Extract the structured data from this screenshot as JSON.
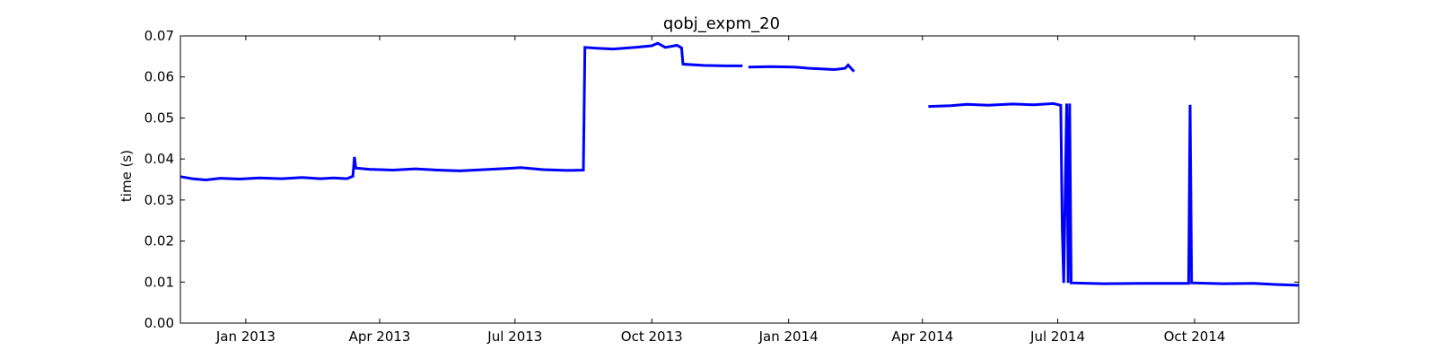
{
  "chart_data": {
    "type": "line",
    "title": "qobj_expm_20",
    "xlabel": "",
    "ylabel": "time (s)",
    "x_ticks": [
      "Jan 2013",
      "Apr 2013",
      "Jul 2013",
      "Oct 2013",
      "Jan 2014",
      "Apr 2014",
      "Jul 2014",
      "Oct 2014"
    ],
    "y_ticks": [
      "0.00",
      "0.01",
      "0.02",
      "0.03",
      "0.04",
      "0.05",
      "0.06",
      "0.07"
    ],
    "xlim": [
      "2012-11-18",
      "2014-12-10"
    ],
    "ylim": [
      0,
      0.07
    ],
    "grid": false,
    "legend": "none",
    "line_color": "#0000ff",
    "series": [
      {
        "segments": [
          [
            [
              "2012-11-18",
              0.0357
            ],
            [
              "2012-11-26",
              0.0352
            ],
            [
              "2012-12-05",
              0.0349
            ],
            [
              "2012-12-15",
              0.0353
            ],
            [
              "2012-12-28",
              0.0351
            ],
            [
              "2013-01-10",
              0.0354
            ],
            [
              "2013-01-25",
              0.0352
            ],
            [
              "2013-02-08",
              0.0355
            ],
            [
              "2013-02-20",
              0.0352
            ],
            [
              "2013-03-01",
              0.0354
            ],
            [
              "2013-03-10",
              0.0352
            ],
            [
              "2013-03-14",
              0.0358
            ],
            [
              "2013-03-15",
              0.0405
            ],
            [
              "2013-03-16",
              0.0378
            ],
            [
              "2013-03-25",
              0.0375
            ],
            [
              "2013-04-10",
              0.0373
            ],
            [
              "2013-04-25",
              0.0376
            ],
            [
              "2013-05-10",
              0.0373
            ],
            [
              "2013-05-25",
              0.0371
            ],
            [
              "2013-06-10",
              0.0374
            ],
            [
              "2013-06-25",
              0.0377
            ],
            [
              "2013-07-05",
              0.0379
            ],
            [
              "2013-07-20",
              0.0374
            ],
            [
              "2013-08-05",
              0.0372
            ],
            [
              "2013-08-16",
              0.0373
            ],
            [
              "2013-08-17",
              0.0672
            ],
            [
              "2013-08-25",
              0.067
            ],
            [
              "2013-09-05",
              0.0668
            ],
            [
              "2013-09-20",
              0.0672
            ],
            [
              "2013-10-01",
              0.0676
            ],
            [
              "2013-10-05",
              0.0682
            ],
            [
              "2013-10-10",
              0.0672
            ],
            [
              "2013-10-18",
              0.0677
            ],
            [
              "2013-10-21",
              0.0671
            ],
            [
              "2013-10-22",
              0.0631
            ],
            [
              "2013-11-05",
              0.0628
            ],
            [
              "2013-11-20",
              0.0627
            ],
            [
              "2013-12-01",
              0.0627
            ]
          ],
          [
            [
              "2013-12-05",
              0.0624
            ],
            [
              "2013-12-20",
              0.0625
            ],
            [
              "2014-01-05",
              0.0624
            ],
            [
              "2014-01-15",
              0.0621
            ],
            [
              "2014-02-01",
              0.0618
            ],
            [
              "2014-02-08",
              0.0621
            ],
            [
              "2014-02-10",
              0.0629
            ],
            [
              "2014-02-14",
              0.0613
            ]
          ],
          [
            [
              "2014-04-05",
              0.0528
            ],
            [
              "2014-04-20",
              0.053
            ],
            [
              "2014-05-01",
              0.0533
            ],
            [
              "2014-05-15",
              0.0531
            ],
            [
              "2014-06-01",
              0.0534
            ],
            [
              "2014-06-15",
              0.0532
            ],
            [
              "2014-06-28",
              0.0535
            ],
            [
              "2014-07-03",
              0.0531
            ],
            [
              "2014-07-04",
              0.023
            ],
            [
              "2014-07-05",
              0.0098
            ],
            [
              "2014-07-07",
              0.0535
            ],
            [
              "2014-07-08",
              0.0098
            ],
            [
              "2014-07-09",
              0.0535
            ],
            [
              "2014-07-10",
              0.0098
            ],
            [
              "2014-08-01",
              0.0096
            ],
            [
              "2014-09-01",
              0.0097
            ],
            [
              "2014-09-27",
              0.0097
            ],
            [
              "2014-09-28",
              0.0532
            ],
            [
              "2014-09-29",
              0.0098
            ],
            [
              "2014-10-20",
              0.0096
            ],
            [
              "2014-11-10",
              0.0097
            ],
            [
              "2014-11-25",
              0.0094
            ],
            [
              "2014-12-10",
              0.0092
            ]
          ]
        ]
      }
    ]
  }
}
